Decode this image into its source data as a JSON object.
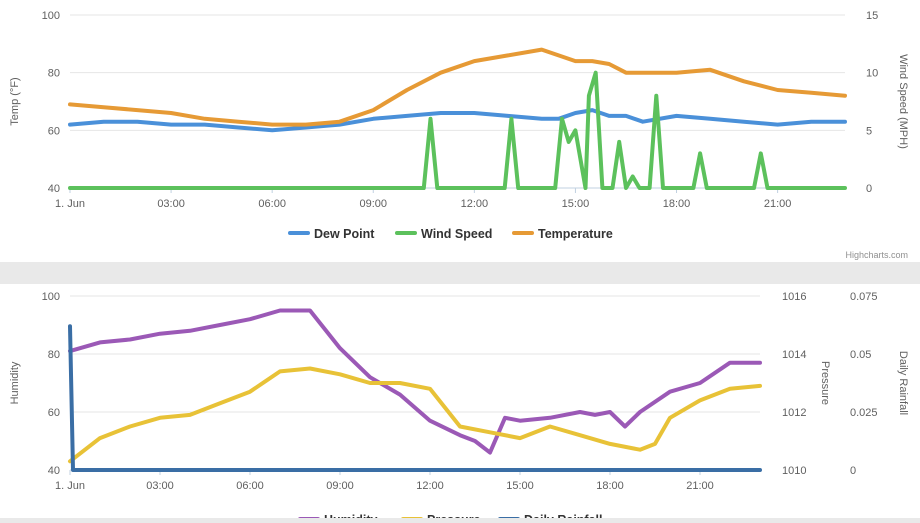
{
  "credit": "Highcharts.com",
  "colors": {
    "dew_point": "#4a90d9",
    "wind_speed": "#5cc15c",
    "temperature": "#e69a35",
    "humidity": "#9b59b6",
    "pressure": "#e8c237",
    "daily_rainfall": "#3a6ea5"
  },
  "chart_data": [
    {
      "type": "line",
      "x_ticks": [
        "1. Jun",
        "03:00",
        "06:00",
        "09:00",
        "12:00",
        "15:00",
        "18:00",
        "21:00"
      ],
      "x_range_hours": [
        0,
        23
      ],
      "axes": [
        {
          "side": "left",
          "label": "Temp (°F)",
          "range": [
            40,
            100
          ],
          "ticks": [
            40,
            60,
            80,
            100
          ]
        },
        {
          "side": "right",
          "label": "Wind Speed (MPH)",
          "range": [
            0,
            15
          ],
          "ticks": [
            0,
            5,
            10,
            15
          ]
        }
      ],
      "legend_position": "bottom-center",
      "series": [
        {
          "name": "Dew Point",
          "axis": "left",
          "color_key": "dew_point",
          "x": [
            0,
            1,
            2,
            3,
            4,
            5,
            6,
            7,
            8,
            9,
            10,
            11,
            12,
            13,
            14,
            14.5,
            15,
            15.5,
            16,
            16.5,
            17,
            18,
            19,
            20,
            21,
            22,
            23
          ],
          "y": [
            62,
            63,
            63,
            62,
            62,
            61,
            60,
            61,
            62,
            64,
            65,
            66,
            66,
            65,
            64,
            64,
            66,
            67,
            65,
            65,
            63,
            65,
            64,
            63,
            62,
            63,
            63
          ]
        },
        {
          "name": "Wind Speed",
          "axis": "right",
          "color_key": "wind_speed",
          "x": [
            0,
            10.5,
            10.7,
            10.9,
            12.9,
            13.1,
            13.3,
            14.4,
            14.6,
            14.8,
            15,
            15.3,
            15.4,
            15.6,
            15.8,
            16.1,
            16.3,
            16.5,
            16.7,
            16.9,
            17.2,
            17.4,
            17.6,
            18.5,
            18.7,
            18.9,
            20.3,
            20.5,
            20.7,
            23
          ],
          "y": [
            0,
            0,
            6,
            0,
            0,
            6,
            0,
            0,
            6,
            4,
            5,
            0,
            8,
            10,
            0,
            0,
            4,
            0,
            1,
            0,
            0,
            8,
            0,
            0,
            3,
            0,
            0,
            3,
            0,
            0
          ]
        },
        {
          "name": "Temperature",
          "axis": "left",
          "color_key": "temperature",
          "x": [
            0,
            1,
            2,
            3,
            4,
            5,
            6,
            7,
            8,
            9,
            10,
            11,
            12,
            13,
            14,
            14.5,
            15,
            15.5,
            16,
            16.5,
            17,
            18,
            19,
            20,
            21,
            22,
            23
          ],
          "y": [
            69,
            68,
            67,
            66,
            64,
            63,
            62,
            62,
            63,
            67,
            74,
            80,
            84,
            86,
            88,
            86,
            84,
            84,
            83,
            80,
            80,
            80,
            81,
            77,
            74,
            73,
            72
          ]
        }
      ]
    },
    {
      "type": "line",
      "x_ticks": [
        "1. Jun",
        "03:00",
        "06:00",
        "09:00",
        "12:00",
        "15:00",
        "18:00",
        "21:00"
      ],
      "x_range_hours": [
        0,
        23
      ],
      "axes": [
        {
          "side": "left",
          "label": "Humidity",
          "range": [
            40,
            100
          ],
          "ticks": [
            40,
            60,
            80,
            100
          ]
        },
        {
          "side": "right",
          "label": "Pressure",
          "range": [
            1010,
            1016
          ],
          "ticks": [
            1010,
            1012,
            1014,
            1016
          ]
        },
        {
          "side": "right",
          "label": "Daily Rainfall",
          "range": [
            0,
            0.075
          ],
          "ticks": [
            "0",
            "0.025",
            "0.05",
            "0.075"
          ]
        }
      ],
      "legend_position": "bottom-center",
      "series": [
        {
          "name": "Humidity",
          "axis": "left",
          "color_key": "humidity",
          "x": [
            0,
            1,
            2,
            3,
            4,
            5,
            6,
            7,
            8,
            9,
            10,
            11,
            12,
            13,
            13.5,
            14,
            14.5,
            15,
            16,
            17,
            17.5,
            18,
            18.5,
            19,
            20,
            21,
            22,
            23
          ],
          "y": [
            81,
            84,
            85,
            87,
            88,
            90,
            92,
            95,
            95,
            82,
            72,
            66,
            57,
            52,
            50,
            46,
            58,
            57,
            58,
            60,
            59,
            60,
            55,
            60,
            67,
            70,
            77,
            77
          ]
        },
        {
          "name": "Pressure",
          "axis": "left_scale_pressure",
          "color_key": "pressure",
          "x": [
            0,
            1,
            2,
            3,
            4,
            5,
            6,
            7,
            8,
            9,
            10,
            11,
            12,
            13,
            14,
            15,
            16,
            17,
            18,
            19,
            19.5,
            20,
            21,
            22,
            23
          ],
          "y": [
            1010.3,
            1011.1,
            1011.5,
            1011.8,
            1011.9,
            1012.3,
            1012.7,
            1013.4,
            1013.5,
            1013.3,
            1013.0,
            1013.0,
            1012.8,
            1011.5,
            1011.3,
            1011.1,
            1011.5,
            1011.2,
            1010.9,
            1010.7,
            1010.9,
            1011.8,
            1012.4,
            1012.8,
            1012.9
          ]
        },
        {
          "name": "Daily Rainfall",
          "axis": "rainfall",
          "color_key": "daily_rainfall",
          "x": [
            0,
            0.1,
            23
          ],
          "y": [
            0.062,
            0,
            0
          ]
        }
      ]
    }
  ]
}
